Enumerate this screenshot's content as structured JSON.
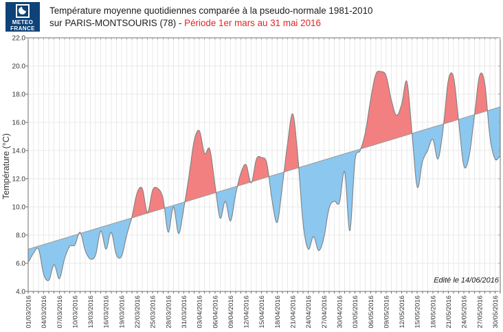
{
  "logo": {
    "line1": "METEO",
    "line2": "FRANCE"
  },
  "header": {
    "title_line1": "Température moyenne quotidiennes comparée à la pseudo-normale 1981-2010",
    "title_line2_prefix": "sur PARIS-MONTSOURIS (78) - ",
    "title_line2_period": "Période 1er mars au 31 mai 2016"
  },
  "chart_data": {
    "type": "area",
    "title": "Température moyenne quotidiennes comparée à la pseudo-normale 1981-2010 sur PARIS-MONTSOURIS (78) - Période 1er mars au 31 mai 2016",
    "ylabel": "Température (°C)",
    "note": "Edité le 14/06/2016",
    "ylim": [
      4.0,
      22.0
    ],
    "y_tick_step": 2.0,
    "y_tick_labels": [
      "22.0",
      "20.0",
      "18.0",
      "16.0",
      "14.0",
      "12.0",
      "10.0",
      "8.0",
      "6.0",
      "4.0"
    ],
    "x_tick_step_days": 3,
    "start_date": "01/03/2016",
    "end_date": "31/05/2016",
    "x_tick_labels": [
      "01/03/2016",
      "04/03/2016",
      "07/03/2016",
      "10/03/2016",
      "13/03/2016",
      "16/03/2016",
      "19/03/2016",
      "22/03/2016",
      "25/03/2016",
      "28/03/2016",
      "31/03/2016",
      "03/04/2016",
      "06/04/2016",
      "09/04/2016",
      "12/04/2016",
      "15/04/2016",
      "18/04/2016",
      "21/04/2016",
      "24/04/2016",
      "27/04/2016",
      "30/04/2016",
      "03/05/2016",
      "06/05/2016",
      "09/05/2016",
      "12/05/2016",
      "15/05/2016",
      "18/05/2016",
      "21/05/2016",
      "24/05/2016",
      "27/05/2016",
      "30/05/2016"
    ],
    "series": {
      "normal": {
        "name": "pseudo-normale 1981-2010",
        "type": "linear",
        "start": 7.0,
        "end": 17.1
      },
      "daily": {
        "name": "température moyenne quotidienne",
        "values": [
          6.1,
          6.7,
          7.0,
          5.2,
          4.8,
          5.9,
          4.9,
          6.3,
          7.2,
          7.3,
          8.2,
          6.9,
          6.3,
          6.6,
          8.3,
          7.0,
          8.2,
          6.6,
          6.5,
          8.0,
          9.3,
          11.0,
          11.3,
          9.6,
          11.2,
          11.3,
          10.6,
          8.2,
          10.0,
          8.1,
          9.9,
          12.2,
          14.7,
          15.4,
          13.8,
          14.1,
          11.6,
          9.2,
          10.4,
          9.0,
          10.9,
          12.4,
          13.0,
          11.7,
          13.4,
          13.5,
          13.1,
          10.5,
          8.9,
          11.5,
          14.5,
          16.6,
          13.5,
          8.8,
          7.0,
          7.9,
          6.9,
          7.8,
          9.9,
          10.4,
          10.3,
          12.5,
          8.3,
          13.3,
          14.0,
          15.3,
          17.6,
          19.4,
          19.6,
          19.3,
          17.6,
          16.5,
          17.3,
          18.9,
          15.2,
          11.4,
          13.2,
          14.0,
          14.8,
          13.4,
          15.6,
          19.0,
          19.2,
          16.0,
          12.9,
          13.6,
          16.4,
          19.3,
          18.8,
          15.0,
          13.4,
          13.6
        ]
      }
    },
    "colors": {
      "above_normal": "#F28080",
      "below_normal": "#8CC7EF",
      "daily_line": "#808080",
      "normal_line": "#999999",
      "grid": "#e8e8e8",
      "axis": "#6e6e6e",
      "tick_text": "#333333",
      "title_accent": "#e32222",
      "logo_navy": "#0d4378"
    }
  }
}
